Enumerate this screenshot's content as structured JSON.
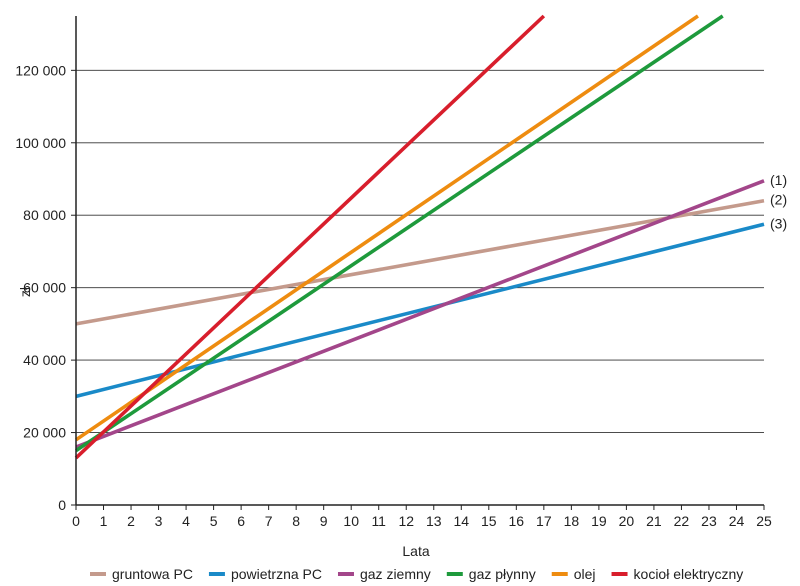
{
  "chart_data": {
    "type": "line",
    "title": "",
    "xlabel": "Lata",
    "ylabel": "zł",
    "xlim": [
      0,
      25
    ],
    "ylim": [
      0,
      135000
    ],
    "x_ticks": [
      0,
      1,
      2,
      3,
      4,
      5,
      6,
      7,
      8,
      9,
      10,
      11,
      12,
      13,
      14,
      15,
      16,
      17,
      18,
      19,
      20,
      21,
      22,
      23,
      24,
      25
    ],
    "y_ticks": [
      {
        "value": 0,
        "label": "0"
      },
      {
        "value": 20000,
        "label": "20 000"
      },
      {
        "value": 40000,
        "label": "40 000"
      },
      {
        "value": 60000,
        "label": "60 000"
      },
      {
        "value": 80000,
        "label": "80 000"
      },
      {
        "value": 100000,
        "label": "100 000"
      },
      {
        "value": 120000,
        "label": "120 000"
      }
    ],
    "grid": "horizontal",
    "legend_position": "bottom",
    "series": [
      {
        "name": "gruntowa PC",
        "color": "#c49a8c",
        "points": [
          [
            0,
            50000
          ],
          [
            25,
            84000
          ]
        ]
      },
      {
        "name": "powietrzna PC",
        "color": "#1a8ac8",
        "points": [
          [
            0,
            30000
          ],
          [
            25,
            77500
          ]
        ]
      },
      {
        "name": "gaz ziemny",
        "color": "#a3468a",
        "points": [
          [
            0,
            16000
          ],
          [
            25,
            89500
          ]
        ]
      },
      {
        "name": "gaz płynny",
        "color": "#1e9a3c",
        "points": [
          [
            0,
            15000
          ],
          [
            23.5,
            135000
          ]
        ]
      },
      {
        "name": "olej",
        "color": "#ee8c10",
        "points": [
          [
            0,
            18000
          ],
          [
            22.6,
            135000
          ]
        ]
      },
      {
        "name": "kocioł elektryczny",
        "color": "#d81e2c",
        "points": [
          [
            0,
            13000
          ],
          [
            17,
            135000
          ]
        ]
      }
    ],
    "annotations": [
      {
        "text": "(1)",
        "x": 25,
        "y": 89500
      },
      {
        "text": "(2)",
        "x": 25,
        "y": 84000
      },
      {
        "text": "(3)",
        "x": 25,
        "y": 77500
      }
    ]
  }
}
